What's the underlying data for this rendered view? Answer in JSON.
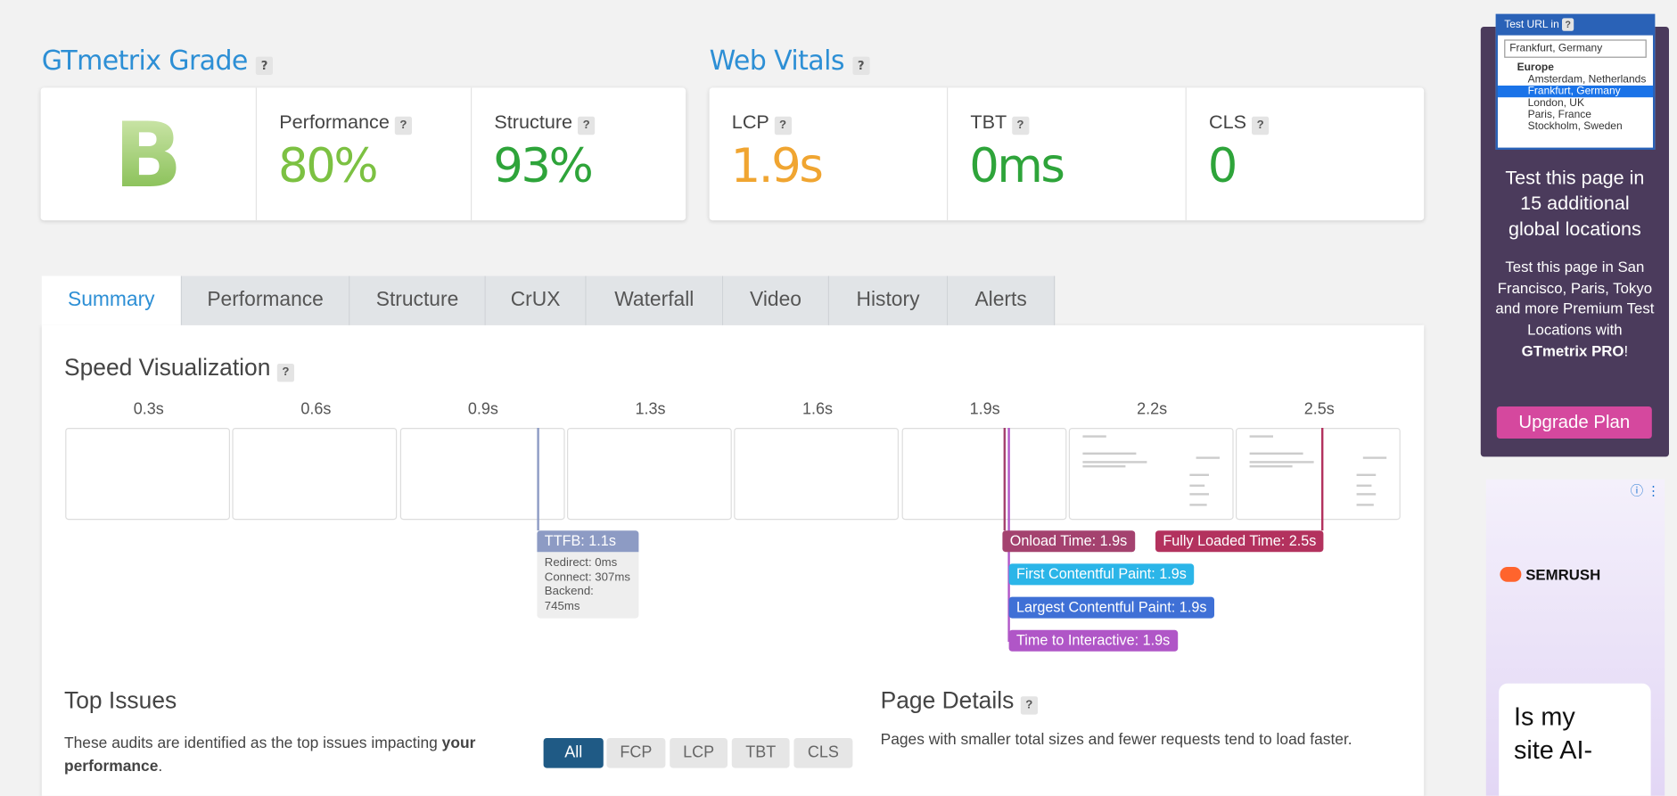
{
  "help": "?",
  "grade": {
    "title": "GTmetrix Grade",
    "letter": "B",
    "metrics": [
      {
        "label": "Performance",
        "value": "80%"
      },
      {
        "label": "Structure",
        "value": "93%"
      }
    ]
  },
  "vitals": {
    "title": "Web Vitals",
    "metrics": [
      {
        "label": "LCP",
        "value": "1.9s"
      },
      {
        "label": "TBT",
        "value": "0ms"
      },
      {
        "label": "CLS",
        "value": "0"
      }
    ]
  },
  "tabs": [
    "Summary",
    "Performance",
    "Structure",
    "CrUX",
    "Waterfall",
    "Video",
    "History",
    "Alerts"
  ],
  "speed": {
    "title": "Speed Visualization",
    "times": [
      "0.3s",
      "0.6s",
      "0.9s",
      "1.3s",
      "1.6s",
      "1.9s",
      "2.2s",
      "2.5s"
    ],
    "markers": [
      "TTFB: 1.1s",
      "Onload Time: 1.9s",
      "Fully Loaded Time: 2.5s",
      "First Contentful Paint: 1.9s",
      "Largest Contentful Paint: 1.9s",
      "Time to Interactive: 1.9s"
    ],
    "ttfb_details": [
      "Redirect: 0ms",
      "Connect: 307ms",
      "Backend: 745ms"
    ]
  },
  "top_issues": {
    "title": "Top Issues",
    "description": "These audits are identified as the top issues impacting",
    "description_bold": "your performance",
    "description_end": ".",
    "filters": [
      "All",
      "FCP",
      "LCP",
      "TBT",
      "CLS"
    ]
  },
  "page_details": {
    "title": "Page Details",
    "description": "Pages with smaller total sizes and fewer requests tend to load faster."
  },
  "sidebar": {
    "select_label": "Test URL in",
    "selected": "Frankfurt, Germany",
    "group": "Europe",
    "options": [
      "Amsterdam, Netherlands",
      "Frankfurt, Germany",
      "London, UK",
      "Paris, France",
      "Stockholm, Sweden"
    ],
    "heading": "Test this page in 15 additional global locations",
    "body": "Test this page in San Francisco, Paris, Tokyo and more Premium Test Locations with",
    "brand": "GTmetrix PRO",
    "brand_end": "!",
    "button": "Upgrade Plan"
  },
  "ad": {
    "brand": "SEMRUSH",
    "headline": "Is my site AI-"
  }
}
